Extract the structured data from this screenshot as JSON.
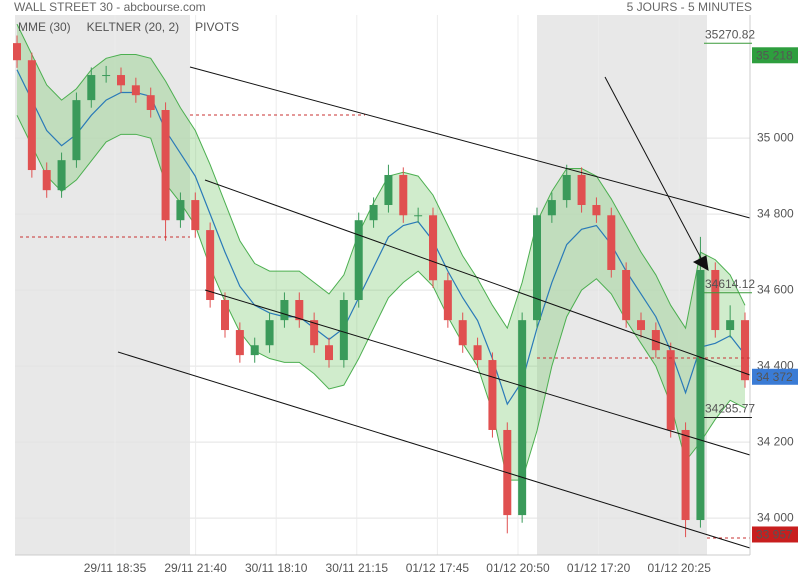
{
  "chart_data": {
    "type": "candlestick",
    "title": "WALL STREET 30 - abcbourse.com",
    "subtitle": "5 JOURS - 5 MINUTES",
    "legend": [
      {
        "name": "MME (30)",
        "color": "#2a7ab8"
      },
      {
        "name": "KELTNER (20, 2)",
        "color": "#4caf50"
      },
      {
        "name": "PIVOTS",
        "color": "#666666"
      }
    ],
    "x_labels": [
      "29/11 18:35",
      "29/11 21:40",
      "30/11 18:10",
      "30/11 21:15",
      "01/12 17:45",
      "01/12 20:50",
      "01/12 17:20",
      "01/12 20:25"
    ],
    "ylim": [
      33903,
      35324
    ],
    "yticks": [
      {
        "value": 34000,
        "label": "34 000"
      },
      {
        "value": 34200,
        "label": "34 200"
      },
      {
        "value": 34400,
        "label": "34 400"
      },
      {
        "value": 34600,
        "label": "34 600"
      },
      {
        "value": 34800,
        "label": "34 800"
      },
      {
        "value": 35000,
        "label": "35 000"
      }
    ],
    "grid": true,
    "up_color": "#3a9a5a",
    "down_color": "#e05050",
    "open": [
      35250,
      35205,
      34916,
      34863,
      34942,
      35100,
      35166,
      35166,
      35139,
      35113,
      35074,
      34784,
      34837,
      34758,
      34574,
      34495,
      34429,
      34455,
      34521,
      34574,
      34521,
      34455,
      34416,
      34574,
      34784,
      34824,
      34903,
      34797,
      34797,
      34626,
      34521,
      34455,
      34416,
      34232,
      34008,
      34521,
      34797,
      34837,
      34903,
      34824,
      34797,
      34653,
      34521,
      34495,
      34442,
      34232,
      33995,
      34653,
      34495,
      34521
    ],
    "high": [
      35270,
      35225,
      34936,
      34962,
      35120,
      35186,
      35190,
      35186,
      35159,
      35133,
      35094,
      34857,
      34857,
      34778,
      34594,
      34515,
      34475,
      34541,
      34594,
      34594,
      34541,
      34475,
      34594,
      34804,
      34844,
      34930,
      34923,
      34817,
      34817,
      34646,
      34541,
      34475,
      34436,
      34252,
      34541,
      34817,
      34857,
      34930,
      34923,
      34844,
      34817,
      34673,
      34541,
      34515,
      34462,
      34252,
      34740,
      34673,
      34560,
      34541
    ],
    "low": [
      35185,
      34896,
      34843,
      34843,
      34922,
      35080,
      35146,
      35119,
      35093,
      35054,
      34730,
      34764,
      34738,
      34554,
      34475,
      34409,
      34409,
      34435,
      34501,
      34501,
      34435,
      34396,
      34396,
      34554,
      34764,
      34804,
      34777,
      34777,
      34606,
      34501,
      34435,
      34396,
      34212,
      33960,
      33988,
      34501,
      34777,
      34817,
      34804,
      34777,
      34633,
      34501,
      34475,
      34422,
      34212,
      33950,
      33975,
      34475,
      34475,
      34343
    ],
    "close": [
      35205,
      34916,
      34863,
      34942,
      35100,
      35166,
      35166,
      35139,
      35113,
      35074,
      34784,
      34837,
      34758,
      34574,
      34495,
      34429,
      34455,
      34521,
      34574,
      34521,
      34455,
      34416,
      34574,
      34784,
      34824,
      34903,
      34797,
      34797,
      34626,
      34521,
      34455,
      34416,
      34232,
      34008,
      34521,
      34797,
      34837,
      34903,
      34824,
      34797,
      34653,
      34521,
      34495,
      34442,
      34232,
      33995,
      34653,
      34495,
      34521,
      34363
    ],
    "mme": [
      35180,
      35100,
      35020,
      34980,
      35010,
      35060,
      35100,
      35120,
      35120,
      35110,
      35020,
      34960,
      34900,
      34800,
      34700,
      34610,
      34560,
      34540,
      34530,
      34530,
      34500,
      34470,
      34500,
      34580,
      34660,
      34740,
      34770,
      34780,
      34730,
      34650,
      34580,
      34520,
      34420,
      34300,
      34360,
      34500,
      34620,
      34720,
      34760,
      34770,
      34720,
      34650,
      34590,
      34530,
      34440,
      34330,
      34450,
      34460,
      34480,
      34430
    ],
    "keltner_upper": [
      35300,
      35220,
      35140,
      35100,
      35130,
      35180,
      35210,
      35220,
      35220,
      35210,
      35150,
      35080,
      35020,
      34930,
      34830,
      34730,
      34670,
      34650,
      34650,
      34650,
      34620,
      34590,
      34640,
      34750,
      34830,
      34900,
      34910,
      34900,
      34850,
      34770,
      34690,
      34630,
      34560,
      34500,
      34620,
      34780,
      34860,
      34920,
      34920,
      34900,
      34840,
      34770,
      34700,
      34640,
      34560,
      34500,
      34700,
      34680,
      34640,
      34560
    ],
    "keltner_lower": [
      35060,
      34980,
      34900,
      34860,
      34890,
      34940,
      34990,
      35010,
      35010,
      35000,
      34880,
      34830,
      34770,
      34660,
      34570,
      34490,
      34440,
      34420,
      34410,
      34410,
      34380,
      34340,
      34350,
      34420,
      34500,
      34580,
      34620,
      34650,
      34610,
      34530,
      34460,
      34400,
      34280,
      34100,
      34100,
      34230,
      34400,
      34530,
      34600,
      34630,
      34590,
      34520,
      34460,
      34400,
      34300,
      34150,
      34200,
      34260,
      34310,
      34290
    ],
    "price_tags": [
      {
        "value": 35218,
        "label": "35 218",
        "color": "#2e9e3e"
      },
      {
        "value": 34372,
        "label": "34 372",
        "color": "#3a7bd5"
      },
      {
        "value": 33957,
        "label": "33 957",
        "color": "#c81e1e"
      }
    ],
    "annotations": [
      35270.82,
      34614.12,
      34285.77
    ]
  }
}
